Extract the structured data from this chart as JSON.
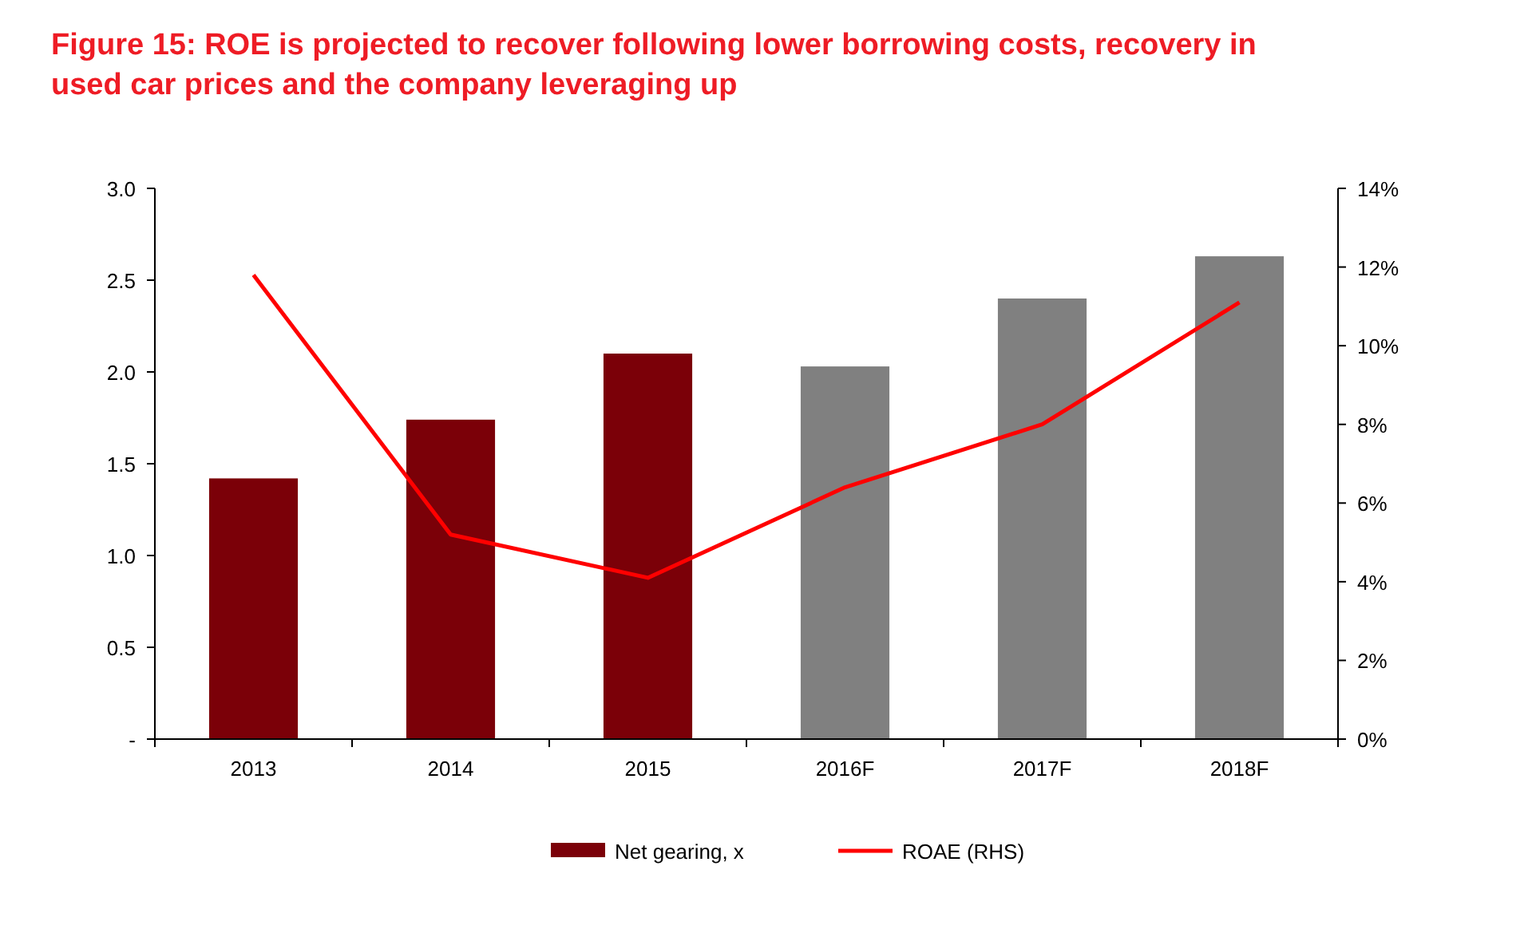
{
  "chart_data": {
    "type": "bar",
    "title": "Figure 15: ROE is projected to recover following lower borrowing costs, recovery in used car prices and the company leveraging up",
    "categories": [
      "2013",
      "2014",
      "2015",
      "2016F",
      "2017F",
      "2018F"
    ],
    "series": [
      {
        "name": "Net gearing, x",
        "color": "#7b0008",
        "colors": [
          "#7b0008",
          "#7b0008",
          "#7b0008",
          "#808080",
          "#808080",
          "#808080"
        ],
        "values": [
          1.42,
          1.74,
          2.1,
          2.03,
          2.4,
          2.63
        ]
      },
      {
        "name": "ROAE (RHS)",
        "type": "line",
        "axis": "y2",
        "color": "#ff0000",
        "values": [
          11.8,
          5.2,
          4.1,
          6.4,
          8.0,
          11.1
        ]
      }
    ],
    "ylim": [
      0,
      3
    ],
    "yticks": [
      {
        "value": 0,
        "label": "-"
      },
      {
        "value": 0.5,
        "label": "0.5"
      },
      {
        "value": 1,
        "label": "1.0"
      },
      {
        "value": 1.5,
        "label": "1.5"
      },
      {
        "value": 2,
        "label": "2.0"
      },
      {
        "value": 2.5,
        "label": "2.5"
      },
      {
        "value": 3,
        "label": "3.0"
      }
    ],
    "y2lim": [
      0,
      14
    ],
    "y2ticks": [
      {
        "value": 0,
        "label": "0%"
      },
      {
        "value": 2,
        "label": "2%"
      },
      {
        "value": 4,
        "label": "4%"
      },
      {
        "value": 6,
        "label": "6%"
      },
      {
        "value": 8,
        "label": "8%"
      },
      {
        "value": 10,
        "label": "10%"
      },
      {
        "value": 12,
        "label": "12%"
      },
      {
        "value": 14,
        "label": "14%"
      }
    ],
    "legend": "bottom",
    "marker": "none",
    "line_style": "solid"
  }
}
